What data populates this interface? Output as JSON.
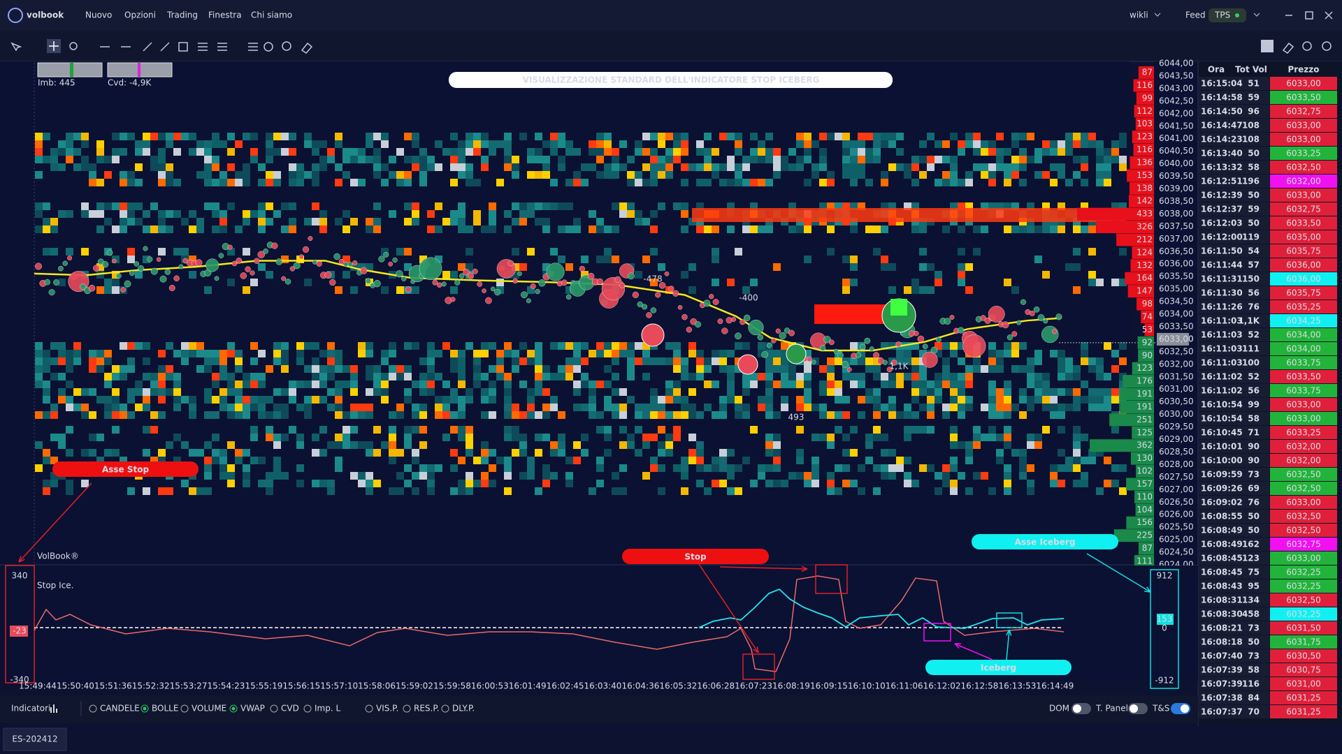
{
  "header": {
    "logo": "volbook",
    "menu": [
      "Nuovo",
      "Opzioni",
      "Trading",
      "Finestra",
      "Chi siamo"
    ],
    "user": "wikli",
    "feed": "Feed",
    "feed_status": "TPS"
  },
  "chart": {
    "title": "VISUALIZZAZIONE STANDARD DELL'INDICATORE STOP ICEBERG",
    "imb": "Imb: 445",
    "cvd": "Cvd: -4,9K",
    "price_labels": [
      "6044,00",
      "6043,50",
      "6043,00",
      "6042,50",
      "6042,00",
      "6041,50",
      "6041,00",
      "6040,50",
      "6040,00",
      "6039,50",
      "6039,00",
      "6038,50",
      "6038,00",
      "6037,50",
      "6037,00",
      "6036,50",
      "6036,00",
      "6035,50",
      "6035,00",
      "6034,50",
      "6034,00",
      "6033,50",
      "6033,00",
      "6032,50",
      "6032,00",
      "6031,50",
      "6031,00",
      "6030,50",
      "6030,00",
      "6029,50",
      "6029,00",
      "6028,50",
      "6028,00",
      "6027,50",
      "6027,00",
      "6026,50",
      "6026,00",
      "6025,50",
      "6025,00",
      "6024,50",
      "6024,00"
    ],
    "current_price": "6033,00",
    "profile_sell": [
      87,
      116,
      99,
      112,
      103,
      123,
      116,
      136,
      153,
      138,
      142,
      433,
      326,
      212,
      124,
      132,
      164,
      147,
      98,
      74,
      53
    ],
    "profile_buy": [
      92,
      90,
      123,
      176,
      191,
      191,
      251,
      125,
      362,
      130,
      102,
      157,
      110,
      104,
      156,
      225,
      87,
      111
    ],
    "sell_color": "#e8101a",
    "buy_color": "#1a8a4a",
    "bubble_labels": [
      "-478",
      "-400",
      "493",
      "1,1K"
    ],
    "times": [
      "15:49:44",
      "15:50:40",
      "15:51:36",
      "15:52:32",
      "15:53:27",
      "15:54:23",
      "15:55:19",
      "15:56:15",
      "15:57:10",
      "15:58:06",
      "15:59:02",
      "15:59:58",
      "16:00:53",
      "16:01:49",
      "16:02:45",
      "16:03:40",
      "16:04:36",
      "16:05:32",
      "16:06:28",
      "16:07:23",
      "16:08:19",
      "16:09:15",
      "16:10:10",
      "16:11:06",
      "16:12:02",
      "16:12:58",
      "16:13:53",
      "16:14:49"
    ]
  },
  "indicator": {
    "brand": "VolBook®",
    "name": "Stop Ice.",
    "left_axis": [
      340,
      -23,
      -340
    ],
    "right_axis": [
      912,
      153,
      0,
      -912
    ]
  },
  "annotations": {
    "asse_stop": "Asse  Stop",
    "stop": "Stop",
    "asse_iceberg": "Asse Iceberg",
    "iceberg": "Iceberg"
  },
  "ts": {
    "headers": [
      "Ora",
      "Tot Vol",
      "Prezzo"
    ],
    "rows": [
      {
        "time": "16:15:04",
        "vol": "51",
        "price": "6033,00",
        "color": "#e0203a"
      },
      {
        "time": "16:14:58",
        "vol": "59",
        "price": "6033,50",
        "color": "#22b43a"
      },
      {
        "time": "16:14:50",
        "vol": "96",
        "price": "6032,75",
        "color": "#e0203a"
      },
      {
        "time": "16:14:47",
        "vol": "108",
        "price": "6033,00",
        "color": "#e0203a"
      },
      {
        "time": "16:14:23",
        "vol": "108",
        "price": "6033,00",
        "color": "#e0203a"
      },
      {
        "time": "16:13:40",
        "vol": "50",
        "price": "6033,25",
        "color": "#22b43a"
      },
      {
        "time": "16:13:32",
        "vol": "58",
        "price": "6032,50",
        "color": "#e0203a"
      },
      {
        "time": "16:12:51",
        "vol": "196",
        "price": "6032,00",
        "color": "#f010f0"
      },
      {
        "time": "16:12:39",
        "vol": "50",
        "price": "6033,00",
        "color": "#e0203a"
      },
      {
        "time": "16:12:37",
        "vol": "59",
        "price": "6032,75",
        "color": "#e0203a"
      },
      {
        "time": "16:12:03",
        "vol": "50",
        "price": "6033,50",
        "color": "#e0203a"
      },
      {
        "time": "16:12:00",
        "vol": "119",
        "price": "6035,00",
        "color": "#e0203a"
      },
      {
        "time": "16:11:50",
        "vol": "54",
        "price": "6035,75",
        "color": "#e0203a"
      },
      {
        "time": "16:11:44",
        "vol": "57",
        "price": "6036,00",
        "color": "#e0203a"
      },
      {
        "time": "16:11:31",
        "vol": "150",
        "price": "6036,00",
        "color": "#10f0f0"
      },
      {
        "time": "16:11:30",
        "vol": "56",
        "price": "6035,75",
        "color": "#e0203a"
      },
      {
        "time": "16:11:26",
        "vol": "76",
        "price": "6035,25",
        "color": "#e0203a"
      },
      {
        "time": "16:11:03",
        "vol": "1,1K",
        "price": "6034,25",
        "color": "#10f0f0"
      },
      {
        "time": "16:11:03",
        "vol": "52",
        "price": "6034,00",
        "color": "#22b43a"
      },
      {
        "time": "16:11:03",
        "vol": "111",
        "price": "6034,00",
        "color": "#22b43a"
      },
      {
        "time": "16:11:03",
        "vol": "100",
        "price": "6033,75",
        "color": "#22b43a"
      },
      {
        "time": "16:11:02",
        "vol": "52",
        "price": "6033,50",
        "color": "#e0203a"
      },
      {
        "time": "16:11:02",
        "vol": "56",
        "price": "6033,75",
        "color": "#22b43a"
      },
      {
        "time": "16:10:54",
        "vol": "99",
        "price": "6033,00",
        "color": "#e0203a"
      },
      {
        "time": "16:10:54",
        "vol": "58",
        "price": "6033,00",
        "color": "#22b43a"
      },
      {
        "time": "16:10:45",
        "vol": "71",
        "price": "6033,25",
        "color": "#e0203a"
      },
      {
        "time": "16:10:01",
        "vol": "90",
        "price": "6032,00",
        "color": "#e0203a"
      },
      {
        "time": "16:10:00",
        "vol": "90",
        "price": "6032,00",
        "color": "#e0203a"
      },
      {
        "time": "16:09:59",
        "vol": "73",
        "price": "6032,50",
        "color": "#22b43a"
      },
      {
        "time": "16:09:26",
        "vol": "69",
        "price": "6032,50",
        "color": "#22b43a"
      },
      {
        "time": "16:09:02",
        "vol": "76",
        "price": "6033,00",
        "color": "#e0203a"
      },
      {
        "time": "16:08:55",
        "vol": "50",
        "price": "6032,50",
        "color": "#e0203a"
      },
      {
        "time": "16:08:49",
        "vol": "50",
        "price": "6032,50",
        "color": "#e0203a"
      },
      {
        "time": "16:08:49",
        "vol": "162",
        "price": "6032,75",
        "color": "#f010f0"
      },
      {
        "time": "16:08:45",
        "vol": "123",
        "price": "6033,00",
        "color": "#22b43a"
      },
      {
        "time": "16:08:45",
        "vol": "75",
        "price": "6032,25",
        "color": "#22b43a"
      },
      {
        "time": "16:08:43",
        "vol": "95",
        "price": "6032,25",
        "color": "#22b43a"
      },
      {
        "time": "16:08:31",
        "vol": "134",
        "price": "6032,50",
        "color": "#e0203a"
      },
      {
        "time": "16:08:30",
        "vol": "458",
        "price": "6032,25",
        "color": "#10f0f0"
      },
      {
        "time": "16:08:21",
        "vol": "73",
        "price": "6031,50",
        "color": "#e0203a"
      },
      {
        "time": "16:08:18",
        "vol": "50",
        "price": "6031,75",
        "color": "#22b43a"
      },
      {
        "time": "16:07:40",
        "vol": "73",
        "price": "6030,50",
        "color": "#e0203a"
      },
      {
        "time": "16:07:39",
        "vol": "58",
        "price": "6030,75",
        "color": "#e0203a"
      },
      {
        "time": "16:07:39",
        "vol": "116",
        "price": "6031,00",
        "color": "#e0203a"
      },
      {
        "time": "16:07:38",
        "vol": "84",
        "price": "6031,25",
        "color": "#e0203a"
      },
      {
        "time": "16:07:37",
        "vol": "70",
        "price": "6031,25",
        "color": "#e0203a"
      }
    ]
  },
  "footer": {
    "indicators_label": "Indicatori",
    "options": [
      {
        "label": "CANDELE",
        "checked": false
      },
      {
        "label": "BOLLE",
        "checked": true
      },
      {
        "label": "VOLUME",
        "checked": false
      },
      {
        "label": "VWAP",
        "checked": true
      },
      {
        "label": "CVD",
        "checked": false
      },
      {
        "label": "Imp. L",
        "checked": false
      },
      {
        "label": "VIS.P.",
        "checked": false
      },
      {
        "label": "RES.P.",
        "checked": false
      },
      {
        "label": "DLY.P.",
        "checked": false
      }
    ],
    "toggles": [
      {
        "label": "DOM",
        "on": false
      },
      {
        "label": "T. Panel",
        "on": false
      },
      {
        "label": "T&S",
        "on": true
      }
    ],
    "tab": "ES-202412"
  }
}
